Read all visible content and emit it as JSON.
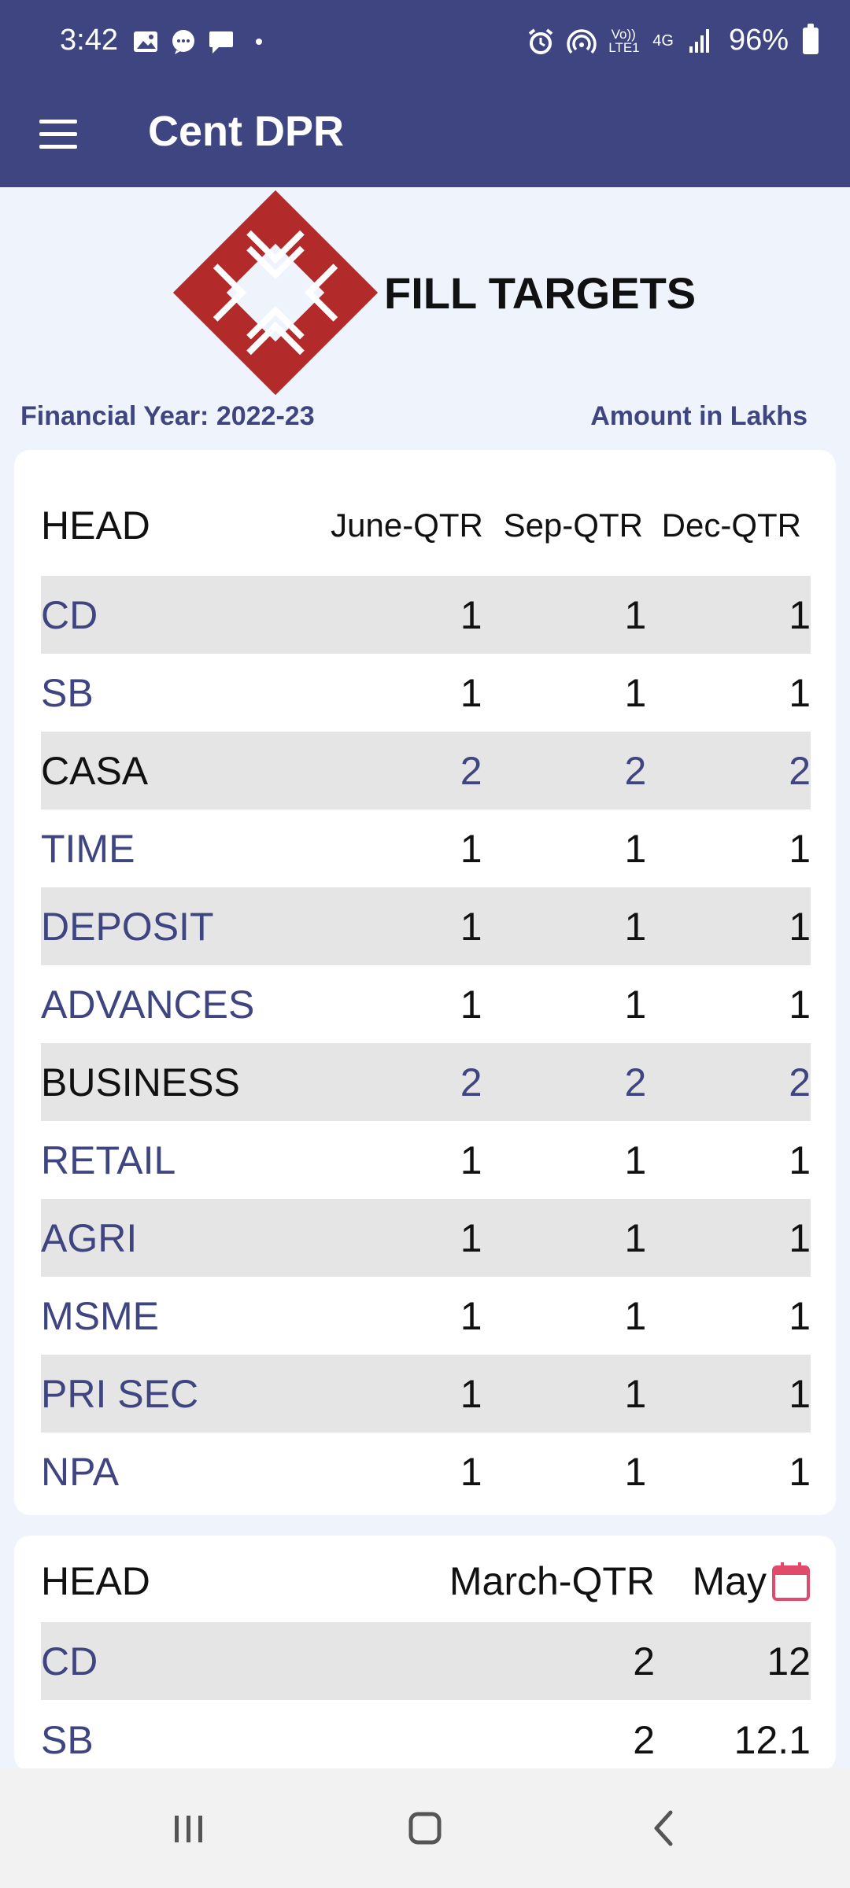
{
  "status_bar": {
    "time": "3:42",
    "battery": "96%",
    "left_icons": [
      "gallery-icon",
      "chat-bubble-icon",
      "message-icon",
      "dot-icon"
    ],
    "right_icons": [
      "alarm-icon",
      "hotspot-icon",
      "volte-icon",
      "4g-icon",
      "signal-icon",
      "battery-icon"
    ],
    "volte_text": "Vo)) LTE1",
    "net_text": "4G"
  },
  "app_bar": {
    "title": "Cent DPR",
    "menu_icon": "hamburger-menu-icon"
  },
  "header": {
    "title": "FILL TARGETS",
    "financial_year": "Financial Year: 2022-23",
    "amount_unit": "Amount in Lakhs",
    "logo_icon": "bank-logo-icon",
    "logo_color": "#b22a2a"
  },
  "colors": {
    "accent": "#3e4580",
    "row_shade": "#e5e5e5",
    "calendar": "#e24a6b"
  },
  "table1": {
    "headers": [
      "HEAD",
      "June-QTR",
      "Sep-QTR",
      "Dec-QTR"
    ],
    "rows": [
      {
        "head": "CD",
        "june": "1",
        "sep": "1",
        "dec": "1"
      },
      {
        "head": "SB",
        "june": "1",
        "sep": "1",
        "dec": "1"
      },
      {
        "head": "CASA",
        "june": "2",
        "sep": "2",
        "dec": "2"
      },
      {
        "head": "TIME",
        "june": "1",
        "sep": "1",
        "dec": "1"
      },
      {
        "head": "DEPOSIT",
        "june": "1",
        "sep": "1",
        "dec": "1"
      },
      {
        "head": "ADVANCES",
        "june": "1",
        "sep": "1",
        "dec": "1"
      },
      {
        "head": "BUSINESS",
        "june": "2",
        "sep": "2",
        "dec": "2"
      },
      {
        "head": "RETAIL",
        "june": "1",
        "sep": "1",
        "dec": "1"
      },
      {
        "head": "AGRI",
        "june": "1",
        "sep": "1",
        "dec": "1"
      },
      {
        "head": "MSME",
        "june": "1",
        "sep": "1",
        "dec": "1"
      },
      {
        "head": "PRI SEC",
        "june": "1",
        "sep": "1",
        "dec": "1"
      },
      {
        "head": "NPA",
        "june": "1",
        "sep": "1",
        "dec": "1"
      }
    ]
  },
  "table2": {
    "headers": [
      "HEAD",
      "March-QTR",
      "May"
    ],
    "calendar_icon": "calendar-icon",
    "rows": [
      {
        "head": "CD",
        "march": "2",
        "may": "12"
      },
      {
        "head": "SB",
        "march": "2",
        "may": "12.1"
      }
    ]
  },
  "nav_bar": {
    "icons": [
      "recent-apps-icon",
      "home-icon",
      "back-icon"
    ]
  }
}
